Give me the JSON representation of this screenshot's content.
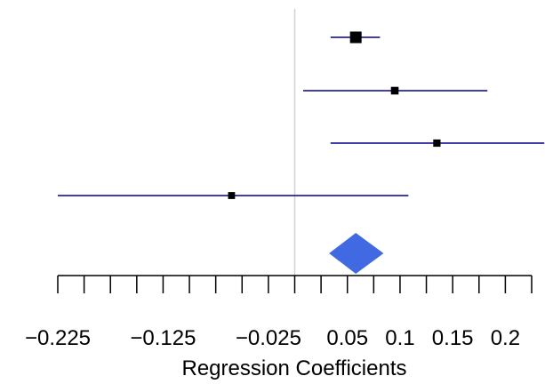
{
  "chart_data": {
    "type": "forest",
    "xlabel": "Regression Coefficients",
    "xlim": [
      -0.225,
      0.225
    ],
    "reference_line": 0,
    "tick_values": [
      -0.225,
      -0.2,
      -0.175,
      -0.15,
      -0.125,
      -0.1,
      -0.075,
      -0.05,
      -0.025,
      0,
      0.025,
      0.05,
      0.075,
      0.1,
      0.125,
      0.15,
      0.175,
      0.2,
      0.225
    ],
    "tick_labels": [
      {
        "value": -0.225,
        "label": "−0.225"
      },
      {
        "value": -0.125,
        "label": "−0.125"
      },
      {
        "value": -0.025,
        "label": "−0.025"
      },
      {
        "value": 0.05,
        "label": "0.05"
      },
      {
        "value": 0.1,
        "label": "0.1"
      },
      {
        "value": 0.15,
        "label": "0.15"
      },
      {
        "value": 0.2,
        "label": "0.2"
      }
    ],
    "studies": [
      {
        "estimate": 0.058,
        "lower": 0.034,
        "upper": 0.081,
        "weight": 1.0
      },
      {
        "estimate": 0.095,
        "lower": 0.008,
        "upper": 0.183,
        "weight": 0.45
      },
      {
        "estimate": 0.135,
        "lower": 0.034,
        "upper": 0.237,
        "weight": 0.4
      },
      {
        "estimate": -0.06,
        "lower": -0.225,
        "upper": 0.108,
        "weight": 0.35
      }
    ],
    "pooled": {
      "estimate": 0.058,
      "lower": 0.036,
      "upper": 0.081
    },
    "colors": {
      "ci_line": "#00008B",
      "point": "#000000",
      "diamond": "#4169E1",
      "reference": "#D3D3D3",
      "axis": "#000000"
    }
  }
}
